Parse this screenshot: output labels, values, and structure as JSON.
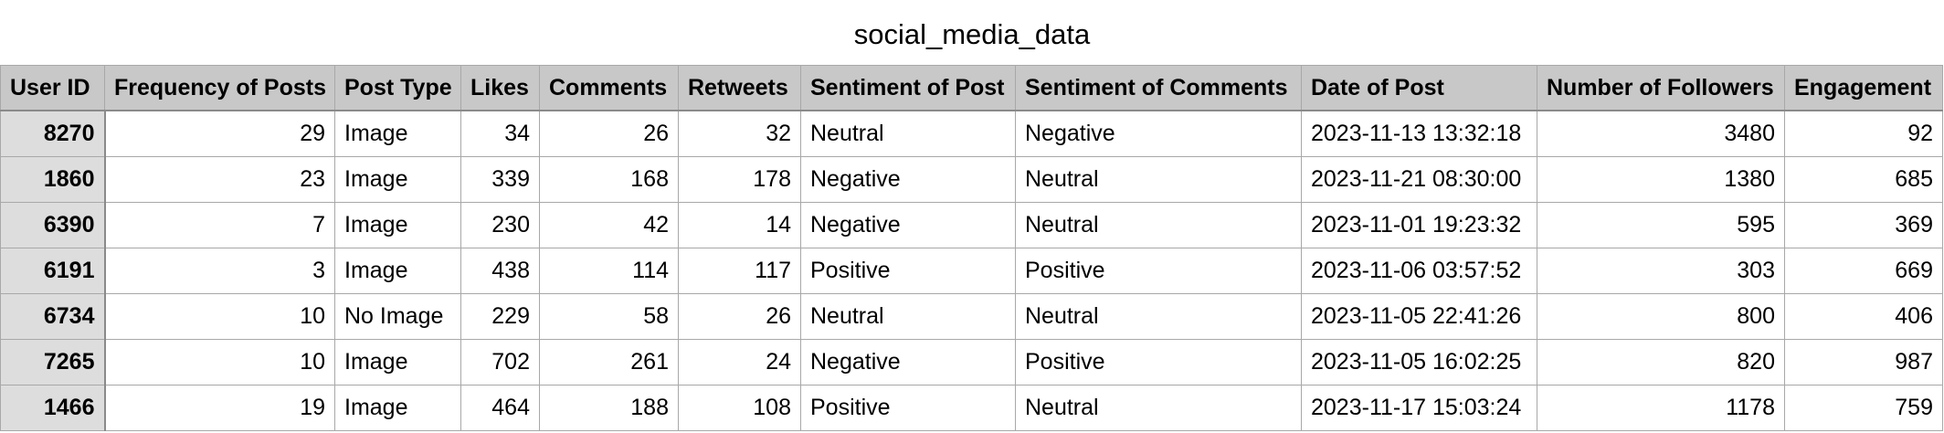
{
  "title": "social_media_data",
  "columns": [
    "User ID",
    "Frequency of Posts",
    "Post Type",
    "Likes",
    "Comments",
    "Retweets",
    "Sentiment of Post",
    "Sentiment of Comments",
    "Date of Post",
    "Number of Followers",
    "Engagement"
  ],
  "rows": [
    [
      "8270",
      "29",
      "Image",
      "34",
      "26",
      "32",
      "Neutral",
      "Negative",
      "2023-11-13 13:32:18",
      "3480",
      "92"
    ],
    [
      "1860",
      "23",
      "Image",
      "339",
      "168",
      "178",
      "Negative",
      "Neutral",
      "2023-11-21 08:30:00",
      "1380",
      "685"
    ],
    [
      "6390",
      "7",
      "Image",
      "230",
      "42",
      "14",
      "Negative",
      "Neutral",
      "2023-11-01 19:23:32",
      "595",
      "369"
    ],
    [
      "6191",
      "3",
      "Image",
      "438",
      "114",
      "117",
      "Positive",
      "Positive",
      "2023-11-06 03:57:52",
      "303",
      "669"
    ],
    [
      "6734",
      "10",
      "No Image",
      "229",
      "58",
      "26",
      "Neutral",
      "Neutral",
      "2023-11-05 22:41:26",
      "800",
      "406"
    ],
    [
      "7265",
      "10",
      "Image",
      "702",
      "261",
      "24",
      "Negative",
      "Positive",
      "2023-11-05 16:02:25",
      "820",
      "987"
    ],
    [
      "1466",
      "19",
      "Image",
      "464",
      "188",
      "108",
      "Positive",
      "Neutral",
      "2023-11-17 15:03:24",
      "1178",
      "759"
    ]
  ]
}
